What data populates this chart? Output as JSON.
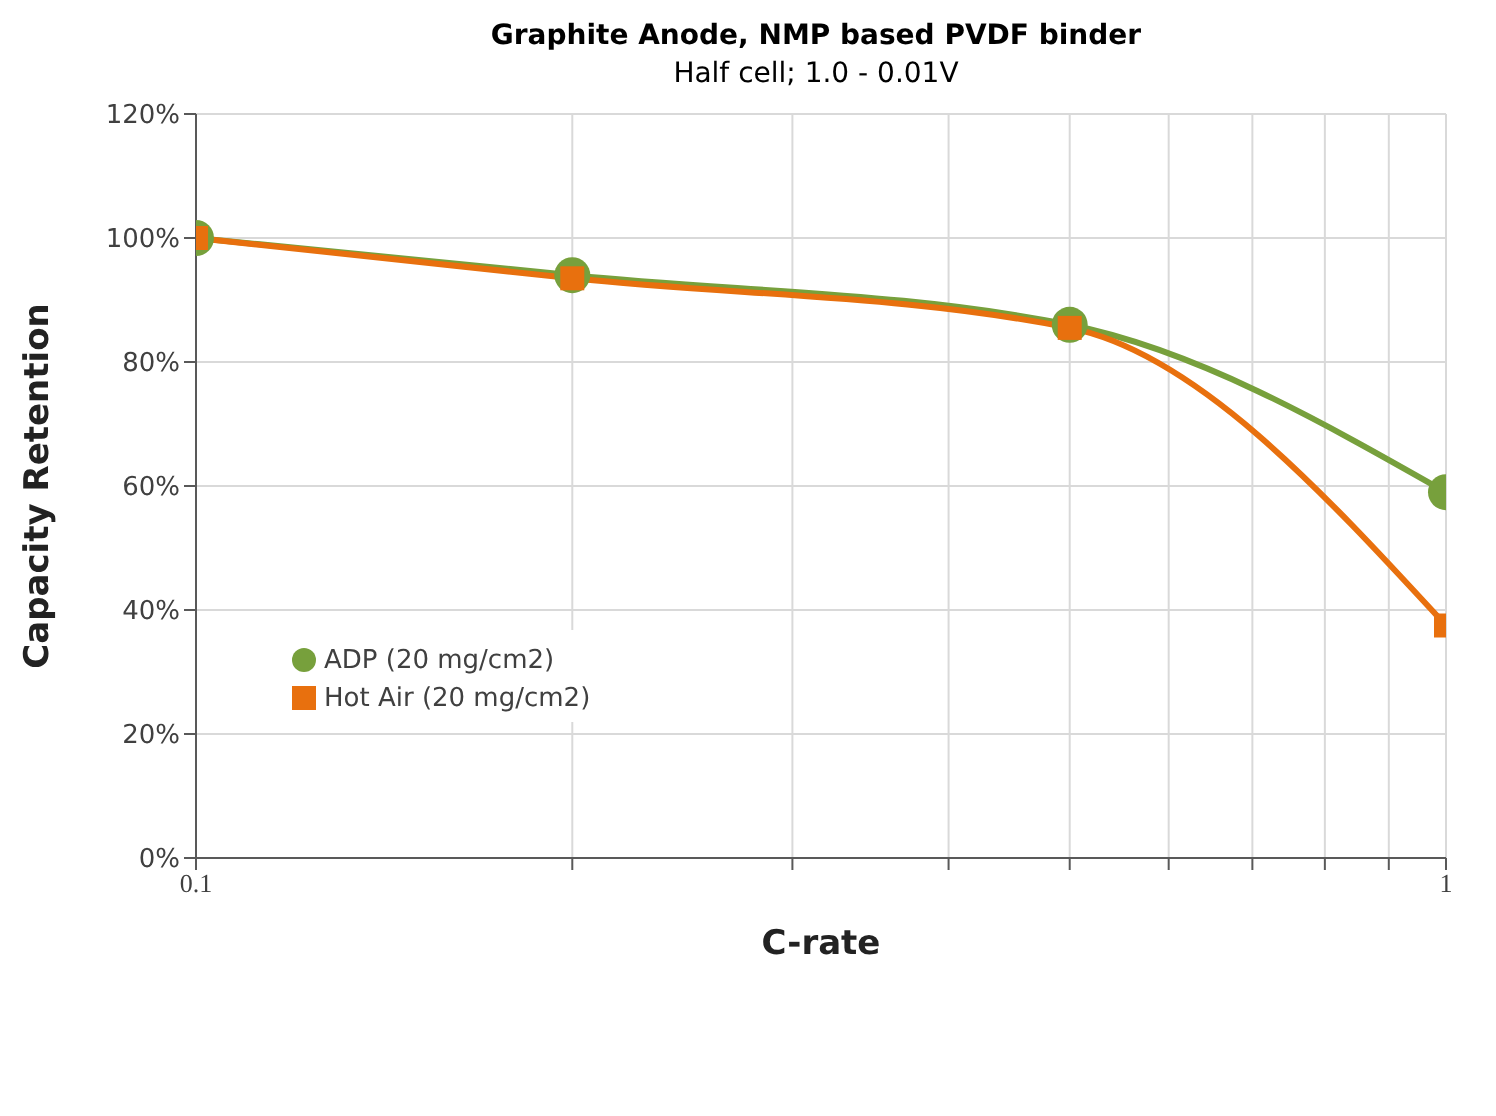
{
  "chart_data": {
    "type": "line",
    "title": "Graphite Anode, NMP based PVDF binder",
    "subtitle": "Half cell; 1.0 - 0.01V",
    "xlabel": "C-rate",
    "ylabel": "Capacity Retention",
    "x": [
      0.1,
      0.2,
      0.5,
      1
    ],
    "series": [
      {
        "name": "ADP (20 mg/cm2)",
        "color": "#77a03c",
        "marker": "circle",
        "values": [
          100,
          94,
          86,
          59
        ]
      },
      {
        "name": "Hot Air (20 mg/cm2)",
        "color": "#e8700e",
        "marker": "square",
        "values": [
          100,
          93.5,
          85.5,
          37.5
        ]
      }
    ],
    "log": "x",
    "xlim": [
      0.1,
      1
    ],
    "xticks": [
      0.1,
      {
        "value": 0.2,
        "label": null
      },
      {
        "value": 0.3,
        "label": null
      },
      {
        "value": 0.4,
        "label": null
      },
      {
        "value": 0.5,
        "label": null
      },
      {
        "value": 0.6,
        "label": null
      },
      {
        "value": 0.7,
        "label": null
      },
      {
        "value": 0.8,
        "label": null
      },
      {
        "value": 0.9,
        "label": null
      },
      1
    ],
    "ylim": [
      0,
      120
    ],
    "yticks": [
      {
        "value": 0,
        "label": "0%"
      },
      {
        "value": 20,
        "label": "20%"
      },
      {
        "value": 40,
        "label": "40%"
      },
      {
        "value": 60,
        "label": "60%"
      },
      {
        "value": 80,
        "label": "80%"
      },
      {
        "value": 100,
        "label": "100%"
      },
      {
        "value": 120,
        "label": "120%"
      }
    ],
    "grid": true,
    "legend": "left",
    "line_style": "solid"
  }
}
